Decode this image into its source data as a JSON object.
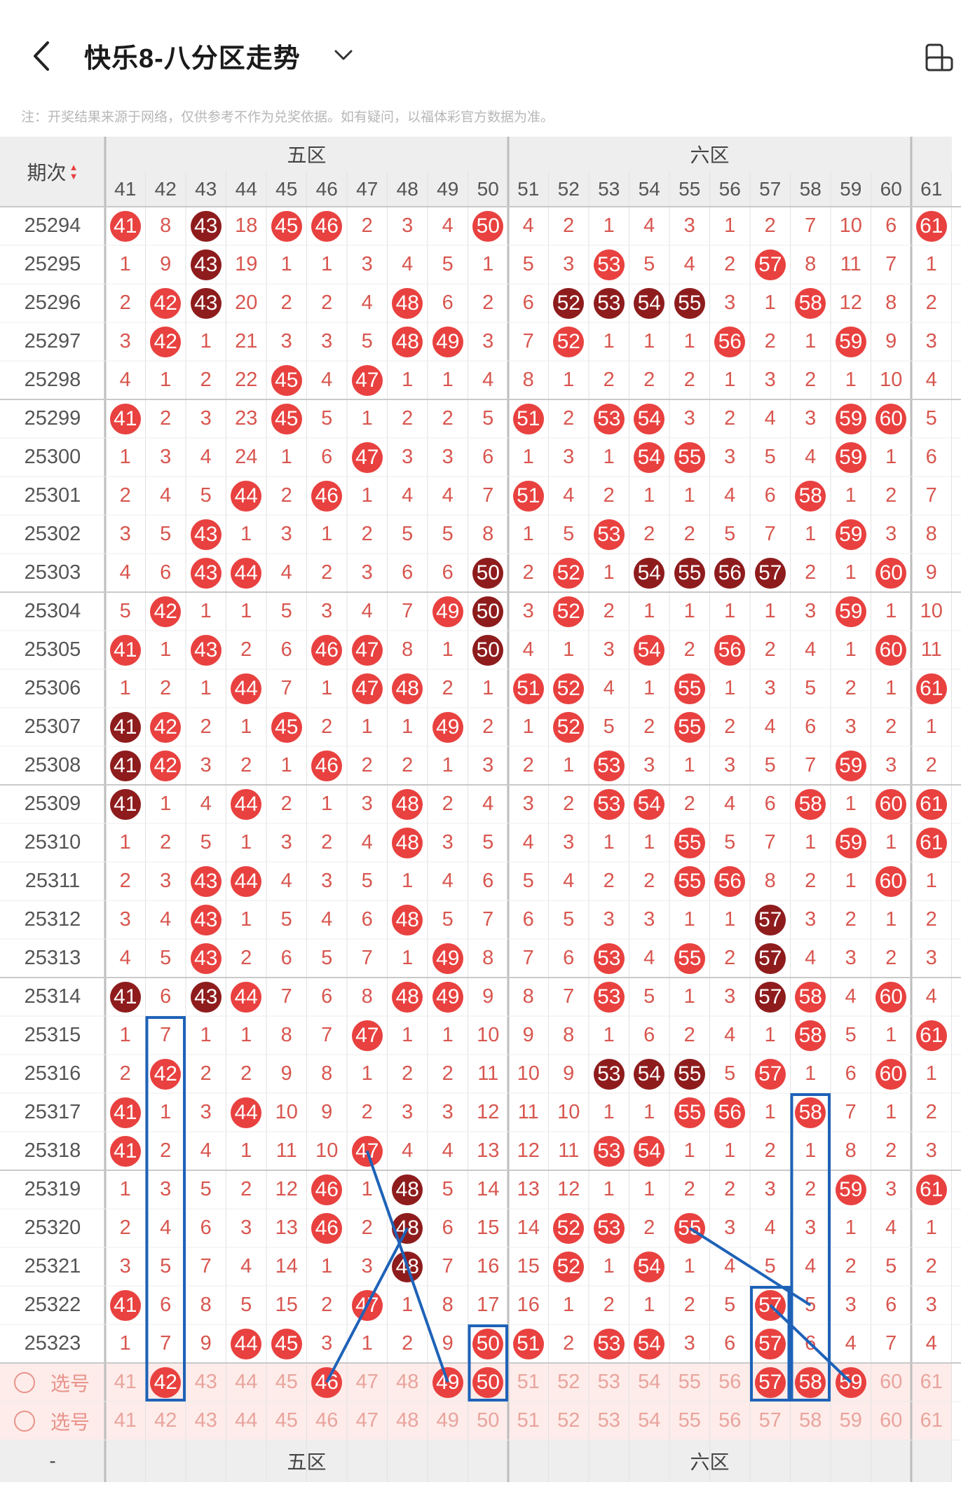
{
  "header": {
    "title": "快乐8-八分区走势",
    "back_icon": "chevron-left-icon",
    "dropdown_icon": "chevron-down-icon",
    "device_icon": "device-toggle-icon"
  },
  "notice": "注：开奖结果来源于网络，仅供参考不作为兑奖依据。如有疑问，以福体彩官方数据为准。",
  "table": {
    "period_header": "期次",
    "zones": [
      "五区",
      "六区"
    ],
    "columns": [
      "41",
      "42",
      "43",
      "44",
      "45",
      "46",
      "47",
      "48",
      "49",
      "50",
      "51",
      "52",
      "53",
      "54",
      "55",
      "56",
      "57",
      "58",
      "59",
      "60",
      "61"
    ],
    "rows": [
      {
        "period": "25294",
        "cells": [
          "41",
          "8",
          "43",
          "18",
          "45",
          "46",
          "2",
          "3",
          "4",
          "50",
          "4",
          "2",
          "1",
          "4",
          "3",
          "1",
          "2",
          "7",
          "10",
          "6",
          "61"
        ]
      },
      {
        "period": "25295",
        "cells": [
          "1",
          "9",
          "43",
          "19",
          "1",
          "1",
          "3",
          "4",
          "5",
          "1",
          "5",
          "3",
          "53",
          "5",
          "4",
          "2",
          "57",
          "8",
          "11",
          "7",
          "1"
        ]
      },
      {
        "period": "25296",
        "cells": [
          "2",
          "42",
          "43",
          "20",
          "2",
          "2",
          "4",
          "48",
          "6",
          "2",
          "6",
          "52",
          "53",
          "54",
          "55",
          "3",
          "1",
          "58",
          "12",
          "8",
          "2"
        ]
      },
      {
        "period": "25297",
        "cells": [
          "3",
          "42",
          "1",
          "21",
          "3",
          "3",
          "5",
          "48",
          "49",
          "3",
          "7",
          "52",
          "1",
          "1",
          "1",
          "56",
          "2",
          "1",
          "59",
          "9",
          "3"
        ]
      },
      {
        "period": "25298",
        "cells": [
          "4",
          "1",
          "2",
          "22",
          "45",
          "4",
          "47",
          "1",
          "1",
          "4",
          "8",
          "1",
          "2",
          "2",
          "2",
          "1",
          "3",
          "2",
          "1",
          "10",
          "4"
        ]
      },
      {
        "period": "25299",
        "cells": [
          "41",
          "2",
          "3",
          "23",
          "45",
          "5",
          "1",
          "2",
          "2",
          "5",
          "51",
          "2",
          "53",
          "54",
          "3",
          "2",
          "4",
          "3",
          "59",
          "60",
          "5"
        ]
      },
      {
        "period": "25300",
        "cells": [
          "1",
          "3",
          "4",
          "24",
          "1",
          "6",
          "47",
          "3",
          "3",
          "6",
          "1",
          "3",
          "1",
          "54",
          "55",
          "3",
          "5",
          "4",
          "59",
          "1",
          "6"
        ]
      },
      {
        "period": "25301",
        "cells": [
          "2",
          "4",
          "5",
          "44",
          "2",
          "46",
          "1",
          "4",
          "4",
          "7",
          "51",
          "4",
          "2",
          "1",
          "1",
          "4",
          "6",
          "58",
          "1",
          "2",
          "7"
        ]
      },
      {
        "period": "25302",
        "cells": [
          "3",
          "5",
          "43",
          "1",
          "3",
          "1",
          "2",
          "5",
          "5",
          "8",
          "1",
          "5",
          "53",
          "2",
          "2",
          "5",
          "7",
          "1",
          "59",
          "3",
          "8"
        ]
      },
      {
        "period": "25303",
        "cells": [
          "4",
          "6",
          "43",
          "44",
          "4",
          "2",
          "3",
          "6",
          "6",
          "50",
          "2",
          "52",
          "1",
          "54",
          "55",
          "56",
          "57",
          "2",
          "1",
          "60",
          "9"
        ]
      },
      {
        "period": "25304",
        "cells": [
          "5",
          "42",
          "1",
          "1",
          "5",
          "3",
          "4",
          "7",
          "49",
          "50",
          "3",
          "52",
          "2",
          "1",
          "1",
          "1",
          "1",
          "3",
          "59",
          "1",
          "10"
        ]
      },
      {
        "period": "25305",
        "cells": [
          "41",
          "1",
          "43",
          "2",
          "6",
          "46",
          "47",
          "8",
          "1",
          "50",
          "4",
          "1",
          "3",
          "54",
          "2",
          "56",
          "2",
          "4",
          "1",
          "60",
          "11"
        ]
      },
      {
        "period": "25306",
        "cells": [
          "1",
          "2",
          "1",
          "44",
          "7",
          "1",
          "47",
          "48",
          "2",
          "1",
          "51",
          "52",
          "4",
          "1",
          "55",
          "1",
          "3",
          "5",
          "2",
          "1",
          "61"
        ]
      },
      {
        "period": "25307",
        "cells": [
          "41",
          "42",
          "2",
          "1",
          "45",
          "2",
          "1",
          "1",
          "49",
          "2",
          "1",
          "52",
          "5",
          "2",
          "55",
          "2",
          "4",
          "6",
          "3",
          "2",
          "1"
        ]
      },
      {
        "period": "25308",
        "cells": [
          "41",
          "42",
          "3",
          "2",
          "1",
          "46",
          "2",
          "2",
          "1",
          "3",
          "2",
          "1",
          "53",
          "3",
          "1",
          "3",
          "5",
          "7",
          "59",
          "3",
          "2"
        ]
      },
      {
        "period": "25309",
        "cells": [
          "41",
          "1",
          "4",
          "44",
          "2",
          "1",
          "3",
          "48",
          "2",
          "4",
          "3",
          "2",
          "53",
          "54",
          "2",
          "4",
          "6",
          "58",
          "1",
          "60",
          "61"
        ]
      },
      {
        "period": "25310",
        "cells": [
          "1",
          "2",
          "5",
          "1",
          "3",
          "2",
          "4",
          "48",
          "3",
          "5",
          "4",
          "3",
          "1",
          "1",
          "55",
          "5",
          "7",
          "1",
          "59",
          "1",
          "61"
        ]
      },
      {
        "period": "25311",
        "cells": [
          "2",
          "3",
          "43",
          "44",
          "4",
          "3",
          "5",
          "1",
          "4",
          "6",
          "5",
          "4",
          "2",
          "2",
          "55",
          "56",
          "8",
          "2",
          "1",
          "60",
          "1"
        ]
      },
      {
        "period": "25312",
        "cells": [
          "3",
          "4",
          "43",
          "1",
          "5",
          "4",
          "6",
          "48",
          "5",
          "7",
          "6",
          "5",
          "3",
          "3",
          "1",
          "1",
          "57",
          "3",
          "2",
          "1",
          "2"
        ]
      },
      {
        "period": "25313",
        "cells": [
          "4",
          "5",
          "43",
          "2",
          "6",
          "5",
          "7",
          "1",
          "49",
          "8",
          "7",
          "6",
          "53",
          "4",
          "55",
          "2",
          "57",
          "4",
          "3",
          "2",
          "3"
        ]
      },
      {
        "period": "25314",
        "cells": [
          "41",
          "6",
          "43",
          "44",
          "7",
          "6",
          "8",
          "48",
          "49",
          "9",
          "8",
          "7",
          "53",
          "5",
          "1",
          "3",
          "57",
          "58",
          "4",
          "60",
          "4"
        ]
      },
      {
        "period": "25315",
        "cells": [
          "1",
          "7",
          "1",
          "1",
          "8",
          "7",
          "47",
          "1",
          "1",
          "10",
          "9",
          "8",
          "1",
          "6",
          "2",
          "4",
          "1",
          "58",
          "5",
          "1",
          "61"
        ]
      },
      {
        "period": "25316",
        "cells": [
          "2",
          "42",
          "2",
          "2",
          "9",
          "8",
          "1",
          "2",
          "2",
          "11",
          "10",
          "9",
          "53",
          "54",
          "55",
          "5",
          "57",
          "1",
          "6",
          "60",
          "1"
        ]
      },
      {
        "period": "25317",
        "cells": [
          "41",
          "1",
          "3",
          "44",
          "10",
          "9",
          "2",
          "3",
          "3",
          "12",
          "11",
          "10",
          "1",
          "1",
          "55",
          "56",
          "1",
          "58",
          "7",
          "1",
          "2"
        ]
      },
      {
        "period": "25318",
        "cells": [
          "41",
          "2",
          "4",
          "1",
          "11",
          "10",
          "47",
          "4",
          "4",
          "13",
          "12",
          "11",
          "53",
          "54",
          "1",
          "1",
          "2",
          "1",
          "8",
          "2",
          "3"
        ]
      },
      {
        "period": "25319",
        "cells": [
          "1",
          "3",
          "5",
          "2",
          "12",
          "46",
          "1",
          "48",
          "5",
          "14",
          "13",
          "12",
          "1",
          "1",
          "2",
          "2",
          "3",
          "2",
          "59",
          "3",
          "61"
        ]
      },
      {
        "period": "25320",
        "cells": [
          "2",
          "4",
          "6",
          "3",
          "13",
          "46",
          "2",
          "48",
          "6",
          "15",
          "14",
          "52",
          "53",
          "2",
          "55",
          "3",
          "4",
          "3",
          "1",
          "4",
          "1"
        ]
      },
      {
        "period": "25321",
        "cells": [
          "3",
          "5",
          "7",
          "4",
          "14",
          "1",
          "3",
          "48",
          "7",
          "16",
          "15",
          "52",
          "1",
          "54",
          "1",
          "4",
          "5",
          "4",
          "2",
          "5",
          "2"
        ]
      },
      {
        "period": "25322",
        "cells": [
          "41",
          "6",
          "8",
          "5",
          "15",
          "2",
          "47",
          "1",
          "8",
          "17",
          "16",
          "1",
          "2",
          "1",
          "2",
          "5",
          "57",
          "5",
          "3",
          "6",
          "3"
        ]
      },
      {
        "period": "25323",
        "cells": [
          "1",
          "7",
          "9",
          "44",
          "45",
          "3",
          "1",
          "2",
          "9",
          "50",
          "51",
          "2",
          "53",
          "54",
          "3",
          "6",
          "57",
          "6",
          "4",
          "7",
          "4"
        ]
      }
    ],
    "dark_balls": [
      [
        0,
        2
      ],
      [
        1,
        2
      ],
      [
        2,
        2
      ],
      [
        2,
        11
      ],
      [
        2,
        12
      ],
      [
        2,
        13
      ],
      [
        2,
        14
      ],
      [
        9,
        9
      ],
      [
        9,
        13
      ],
      [
        9,
        14
      ],
      [
        9,
        15
      ],
      [
        9,
        16
      ],
      [
        10,
        9
      ],
      [
        11,
        9
      ],
      [
        13,
        0
      ],
      [
        14,
        0
      ],
      [
        15,
        0
      ],
      [
        18,
        16
      ],
      [
        19,
        16
      ],
      [
        20,
        0
      ],
      [
        20,
        2
      ],
      [
        20,
        16
      ],
      [
        22,
        12
      ],
      [
        22,
        13
      ],
      [
        22,
        14
      ],
      [
        25,
        7
      ],
      [
        26,
        7
      ],
      [
        27,
        7
      ]
    ],
    "pick_rows": [
      {
        "label": "选号",
        "cells": [
          "41",
          "42",
          "43",
          "44",
          "45",
          "46",
          "47",
          "48",
          "49",
          "50",
          "51",
          "52",
          "53",
          "54",
          "55",
          "56",
          "57",
          "58",
          "59",
          "60",
          "61"
        ],
        "selected": [
          1,
          5,
          8,
          9,
          16,
          17,
          18
        ]
      },
      {
        "label": "选号",
        "cells": [
          "41",
          "42",
          "43",
          "44",
          "45",
          "46",
          "47",
          "48",
          "49",
          "50",
          "51",
          "52",
          "53",
          "54",
          "55",
          "56",
          "57",
          "58",
          "59",
          "60",
          "61"
        ],
        "selected": []
      }
    ],
    "footer_zones": [
      "五区",
      "六区"
    ],
    "dash": "-"
  },
  "colors": {
    "ball_red": "#e8413f",
    "ball_dark": "#8e1c1d",
    "number_red": "#d8564f",
    "annotation_blue": "#1e62b8"
  }
}
